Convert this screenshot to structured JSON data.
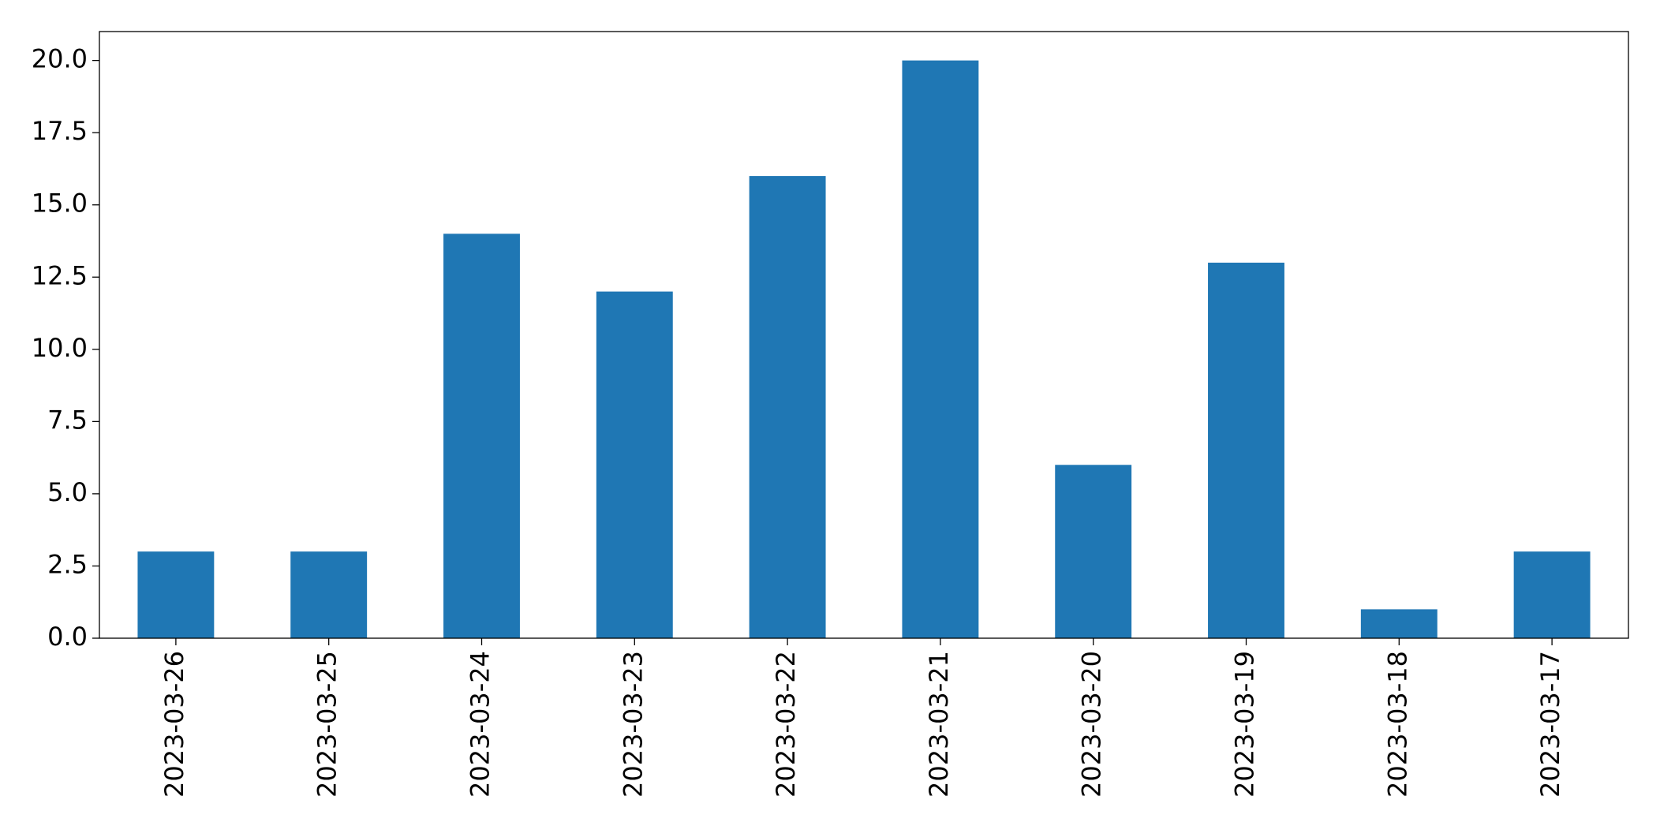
{
  "chart_data": {
    "type": "bar",
    "categories": [
      "2023-03-26",
      "2023-03-25",
      "2023-03-24",
      "2023-03-23",
      "2023-03-22",
      "2023-03-21",
      "2023-03-20",
      "2023-03-19",
      "2023-03-18",
      "2023-03-17"
    ],
    "values": [
      3,
      3,
      14,
      12,
      16,
      20,
      6,
      13,
      1,
      3
    ],
    "color": "#1f77b4",
    "ylim": [
      0,
      21
    ],
    "yticks": [
      {
        "value": 0,
        "label": "0.0"
      },
      {
        "value": 2.5,
        "label": "2.5"
      },
      {
        "value": 5,
        "label": "5.0"
      },
      {
        "value": 7.5,
        "label": "7.5"
      },
      {
        "value": 10,
        "label": "10.0"
      },
      {
        "value": 12.5,
        "label": "12.5"
      },
      {
        "value": 15,
        "label": "15.0"
      },
      {
        "value": 17.5,
        "label": "17.5"
      },
      {
        "value": 20,
        "label": "20.0"
      }
    ],
    "grid": false
  }
}
